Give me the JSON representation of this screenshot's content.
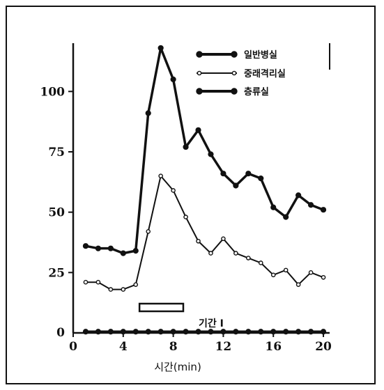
{
  "chart_data": {
    "type": "line",
    "xlabel": "시간(min)",
    "ylabel": "",
    "x_ticks": [
      "0",
      "4",
      "8",
      "12",
      "16",
      "20"
    ],
    "y_ticks": [
      "25",
      "50",
      "75",
      "100"
    ],
    "y_zero_label": "0",
    "xlim": [
      0,
      20.5
    ],
    "ylim": [
      0,
      120
    ],
    "grid": false,
    "legend_position": "top-right",
    "x": [
      1,
      2,
      3,
      4,
      5,
      6,
      7,
      8,
      9,
      10,
      11,
      12,
      13,
      14,
      15,
      16,
      17,
      18,
      19,
      20
    ],
    "series": [
      {
        "name": "일반병실",
        "marker": "filled",
        "values": [
          0.5,
          0.5,
          0.5,
          0.5,
          0.5,
          0.5,
          0.5,
          0.5,
          0.5,
          0.5,
          0.5,
          0.5,
          0.5,
          0.5,
          0.5,
          0.5,
          0.5,
          0.5,
          0.5,
          0.5
        ]
      },
      {
        "name": "중래격리실",
        "marker": "open",
        "values": [
          21,
          21,
          18,
          18,
          20,
          42,
          65,
          59,
          48,
          38,
          33,
          39,
          33,
          31,
          29,
          24,
          26,
          20,
          25,
          23
        ]
      },
      {
        "name": "층류실",
        "marker": "filled",
        "values": [
          36,
          35,
          35,
          33,
          34,
          91,
          118,
          105,
          77,
          84,
          74,
          66,
          61,
          66,
          64,
          52,
          48,
          57,
          53,
          51
        ]
      }
    ],
    "annotation": {
      "label": "기간 Ⅰ",
      "bar_start": 5.3,
      "bar_end": 8.8
    }
  }
}
